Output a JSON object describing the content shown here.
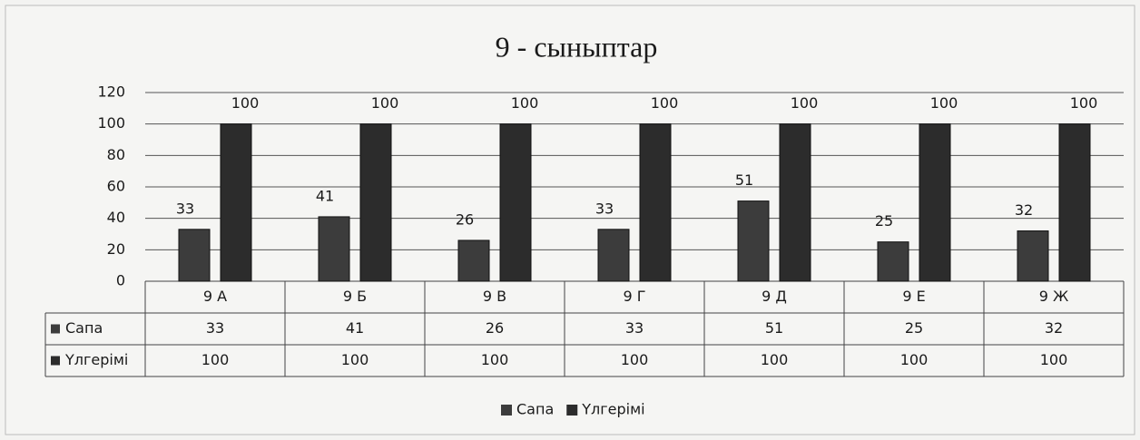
{
  "chart_data": {
    "type": "bar",
    "title": "9 - сыныптар",
    "categories": [
      "9 А",
      "9 Б",
      "9 В",
      "9 Г",
      "9 Д",
      "9 Е",
      "9 Ж"
    ],
    "series": [
      {
        "name": "Сапа",
        "color": "#3c3c3c",
        "values": [
          33,
          41,
          26,
          33,
          51,
          25,
          32
        ]
      },
      {
        "name": "Үлгерімі",
        "color": "#2c2c2c",
        "values": [
          100,
          100,
          100,
          100,
          100,
          100,
          100
        ]
      }
    ],
    "ylim": [
      0,
      120
    ],
    "yticks": [
      0,
      20,
      40,
      60,
      80,
      100,
      120
    ],
    "grid": true,
    "legend": "bottom"
  }
}
